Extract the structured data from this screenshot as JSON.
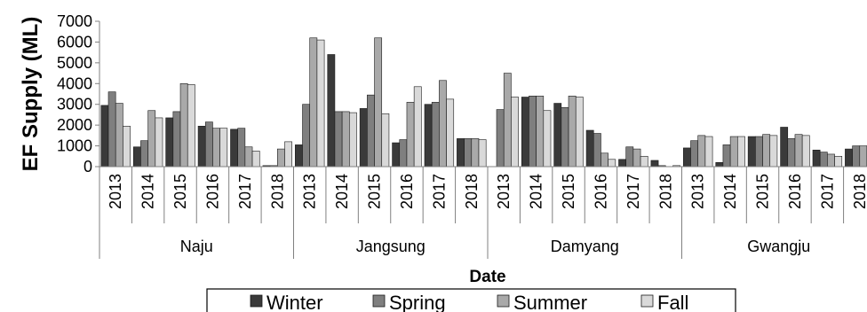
{
  "chart_data": {
    "type": "bar",
    "title": "",
    "xlabel": "Date",
    "ylabel": "EF Supply (ML)",
    "ylim": [
      0,
      7000
    ],
    "yticks": [
      0,
      1000,
      2000,
      3000,
      4000,
      5000,
      6000,
      7000
    ],
    "grid": false,
    "legend_position": "bottom",
    "groups": [
      {
        "name": "Naju",
        "years": [
          "2013",
          "2014",
          "2015",
          "2016",
          "2017",
          "2018"
        ]
      },
      {
        "name": "Jangsung",
        "years": [
          "2013",
          "2014",
          "2015",
          "2016",
          "2017",
          "2018"
        ]
      },
      {
        "name": "Damyang",
        "years": [
          "2013",
          "2014",
          "2015",
          "2016",
          "2017",
          "2018"
        ]
      },
      {
        "name": "Gwangju",
        "years": [
          "2013",
          "2014",
          "2015",
          "2016",
          "2017",
          "2018"
        ]
      }
    ],
    "series": [
      {
        "name": "Winter",
        "color": "#3a3a3a",
        "values": [
          2950,
          950,
          2350,
          1950,
          1800,
          50,
          1050,
          5400,
          2800,
          1150,
          3000,
          1350,
          0,
          3350,
          3050,
          1750,
          350,
          300,
          900,
          200,
          1450,
          1900,
          800,
          850
        ]
      },
      {
        "name": "Spring",
        "color": "#7f7f7f",
        "values": [
          3600,
          1250,
          2650,
          2150,
          1850,
          50,
          3000,
          2650,
          3450,
          1300,
          3100,
          1350,
          2750,
          3400,
          2850,
          1600,
          950,
          50,
          1250,
          1050,
          1450,
          1350,
          700,
          1000
        ]
      },
      {
        "name": "Summer",
        "color": "#a9a9a9",
        "values": [
          3050,
          2700,
          4000,
          1850,
          950,
          850,
          6200,
          2650,
          6200,
          3100,
          4150,
          1350,
          4500,
          3400,
          3400,
          650,
          850,
          0,
          1500,
          1450,
          1550,
          1550,
          600,
          1000
        ]
      },
      {
        "name": "Fall",
        "color": "#d9d9d9",
        "values": [
          1950,
          2350,
          3950,
          1850,
          750,
          1200,
          6100,
          2600,
          2550,
          3850,
          3250,
          1300,
          3350,
          2700,
          3350,
          350,
          500,
          50,
          1450,
          1450,
          1500,
          1500,
          500,
          1000
        ]
      }
    ]
  }
}
